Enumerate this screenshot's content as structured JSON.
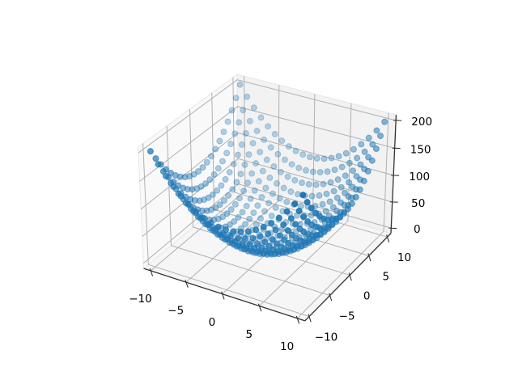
{
  "figure": {
    "background": "#ffffff"
  },
  "chart_data": {
    "type": "scatter",
    "subtype": "scatter3d",
    "title": "",
    "xlabel": "",
    "ylabel": "",
    "zlabel": "",
    "legend": false,
    "grid": true,
    "x_values": [
      -10,
      -9,
      -8,
      -7,
      -6,
      -5,
      -4,
      -3,
      -2,
      -1,
      0,
      1,
      2,
      3,
      4,
      5,
      6,
      7,
      8,
      9,
      10
    ],
    "y_values": [
      -10,
      -9,
      -8,
      -7,
      -6,
      -5,
      -4,
      -3,
      -2,
      -1,
      0,
      1,
      2,
      3,
      4,
      5,
      6,
      7,
      8,
      9,
      10
    ],
    "z_expression": "x*x + y*y",
    "z_formula_label": "z = x^2 + y^2 over 21x21 grid (441 points)",
    "z_min": 0,
    "z_max": 200,
    "marker": {
      "color": "#1f77b4",
      "radius_px": 3.5,
      "depth_alpha_min": 0.3,
      "depth_alpha_max": 1.0
    },
    "axes": {
      "x": {
        "ticks": [
          -10,
          -5,
          0,
          5,
          10
        ],
        "tick_labels": [
          "−10",
          "−5",
          "0",
          "5",
          "10"
        ],
        "lim": [
          -11,
          11
        ]
      },
      "y": {
        "ticks": [
          -10,
          -5,
          0,
          5,
          10
        ],
        "tick_labels": [
          "−10",
          "−5",
          "0",
          "5",
          "10"
        ],
        "lim": [
          -11,
          11
        ]
      },
      "z": {
        "ticks": [
          0,
          50,
          100,
          150,
          200
        ],
        "tick_labels": [
          "0",
          "50",
          "100",
          "150",
          "200"
        ],
        "lim": [
          -10,
          210
        ]
      }
    },
    "view": {
      "elev": 30,
      "azim": -60,
      "dist": 10,
      "projection": "persp"
    },
    "colors": {
      "pane_left": "#f9f9f9",
      "pane_right": "#f2f2f2",
      "pane_floor": "#f6f6f6",
      "pane_edge": "#e7e7e7",
      "grid": "#b0b0b0",
      "axisline": "#333333",
      "tick_label": "#000000"
    }
  }
}
